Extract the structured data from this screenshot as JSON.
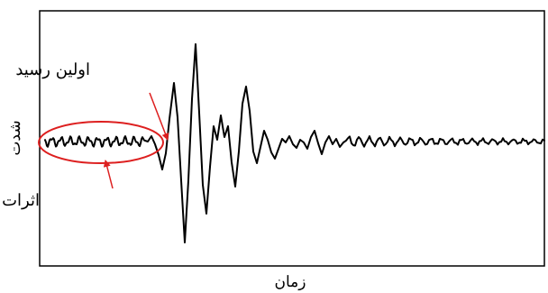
{
  "chart_data": {
    "type": "line",
    "title": "",
    "xlabel": "زمان",
    "ylabel": "شدت",
    "xticks": [],
    "yticks": [],
    "grid": false,
    "legend": "none",
    "series": [
      {
        "color": "#000000",
        "description_of_signal": "",
        "x": [
          0.0,
          0.1,
          0.2,
          0.3,
          0.4,
          0.5,
          0.6,
          0.7,
          0.8,
          0.9,
          1.0
        ],
        "y": [
          0.0,
          0.05,
          -0.08,
          0.06,
          0.72,
          -0.4,
          0.5,
          -0.1,
          0.05,
          -0.03,
          0.0
        ]
      }
    ],
    "annotations": [
      {
        "id": "first_arrival",
        "text": "اولین رسید",
        "color": "#dd1f1f"
      },
      {
        "id": "near_field",
        "text": "اثرات حوزه نزدیک",
        "color": "#dd1f1f"
      }
    ],
    "colors": {
      "signal": "#000000",
      "annotation": "#dd1f1f",
      "axes": "#000000"
    }
  }
}
